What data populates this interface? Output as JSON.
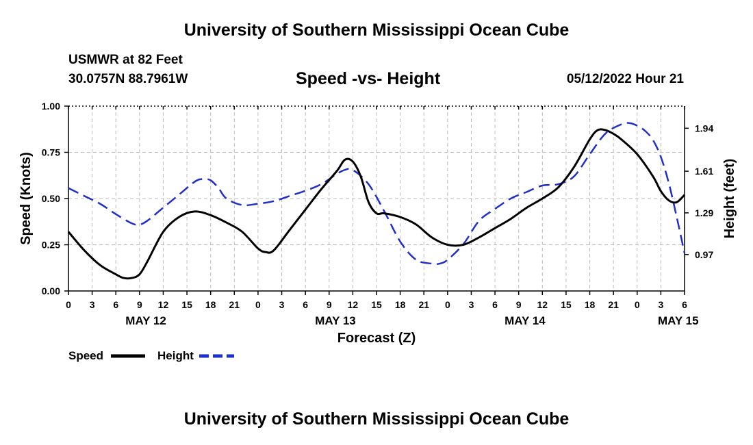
{
  "header": {
    "title": "University of Southern Mississippi Ocean Cube",
    "station": "USMWR at 82 Feet",
    "coords": "30.0757N  88.7961W",
    "subtitle": "Speed -vs- Height",
    "datetime": "05/12/2022 Hour 21"
  },
  "footer": {
    "title": "University of Southern Mississippi Ocean Cube"
  },
  "chart_data": {
    "type": "line",
    "title": "Speed -vs- Height",
    "xlabel": "Forecast (Z)",
    "ylabel": "Speed (Knots)",
    "y2label": "Height (feet)",
    "xlim": [
      0,
      78
    ],
    "ylim": [
      0,
      1
    ],
    "y2lim": [
      0.69,
      2.11
    ],
    "grid": true,
    "x_ticks": [
      0,
      3,
      6,
      9,
      12,
      15,
      18,
      21,
      24,
      27,
      30,
      33,
      36,
      39,
      42,
      45,
      48,
      51,
      54,
      57,
      60,
      63,
      66,
      69,
      72,
      75,
      78
    ],
    "x_tick_labels": [
      "0",
      "3",
      "6",
      "9",
      "12",
      "15",
      "18",
      "21",
      "0",
      "3",
      "6",
      "9",
      "12",
      "15",
      "18",
      "21",
      "0",
      "3",
      "6",
      "9",
      "12",
      "15",
      "18",
      "21",
      "0",
      "3",
      "6"
    ],
    "day_labels": [
      {
        "label": "MAY 12",
        "x": 9.8
      },
      {
        "label": "MAY 13",
        "x": 33.8
      },
      {
        "label": "MAY 14",
        "x": 57.8
      },
      {
        "label": "MAY 15",
        "x": 77.2
      }
    ],
    "y_ticks": [
      0,
      0.25,
      0.5,
      0.75,
      1
    ],
    "y_tick_labels": [
      "0.00",
      "0.25",
      "0.50",
      "0.75",
      "1.00"
    ],
    "y2_ticks": [
      0.97,
      1.29,
      1.61,
      1.94
    ],
    "y2_tick_labels": [
      "0.97",
      "1.29",
      "1.61",
      "1.94"
    ],
    "legend": {
      "position": "bottom-left",
      "entries": [
        {
          "label": "Speed",
          "color": "#000000",
          "style": "solid"
        },
        {
          "label": "Height",
          "color": "#1f2fcc",
          "style": "dashed"
        }
      ]
    },
    "series": [
      {
        "name": "Speed",
        "axis": "left",
        "color": "#000000",
        "dash": false,
        "x": [
          0,
          2,
          4,
          6,
          7,
          8,
          9,
          10,
          12,
          14,
          16,
          18,
          20,
          22,
          24,
          25,
          26,
          28,
          30,
          32,
          34,
          35,
          36,
          37,
          38,
          39,
          40,
          42,
          44,
          46,
          48,
          50,
          52,
          54,
          56,
          58,
          60,
          62,
          64,
          66,
          67,
          68,
          69,
          70,
          72,
          74,
          75,
          76,
          77,
          78
        ],
        "y": [
          0.32,
          0.22,
          0.14,
          0.09,
          0.07,
          0.07,
          0.09,
          0.16,
          0.32,
          0.4,
          0.43,
          0.41,
          0.37,
          0.32,
          0.23,
          0.21,
          0.22,
          0.33,
          0.44,
          0.55,
          0.65,
          0.71,
          0.7,
          0.62,
          0.48,
          0.42,
          0.42,
          0.4,
          0.36,
          0.29,
          0.25,
          0.25,
          0.29,
          0.34,
          0.39,
          0.45,
          0.5,
          0.56,
          0.67,
          0.82,
          0.87,
          0.87,
          0.85,
          0.82,
          0.74,
          0.62,
          0.54,
          0.49,
          0.48,
          0.52
        ]
      },
      {
        "name": "Height",
        "axis": "right",
        "color": "#1f2fcc",
        "dash": true,
        "x": [
          0,
          2,
          4,
          6,
          8,
          9,
          10,
          12,
          14,
          16,
          17,
          18,
          19,
          20,
          22,
          24,
          26,
          28,
          30,
          32,
          34,
          35,
          36,
          38,
          40,
          42,
          44,
          46,
          47,
          48,
          50,
          52,
          54,
          56,
          58,
          60,
          62,
          64,
          66,
          68,
          70,
          71,
          72,
          73,
          74,
          75,
          76,
          77,
          78
        ],
        "y": [
          1.48,
          1.42,
          1.36,
          1.28,
          1.21,
          1.2,
          1.23,
          1.33,
          1.43,
          1.53,
          1.55,
          1.54,
          1.48,
          1.4,
          1.35,
          1.36,
          1.38,
          1.42,
          1.46,
          1.51,
          1.59,
          1.62,
          1.62,
          1.51,
          1.3,
          1.07,
          0.93,
          0.9,
          0.9,
          0.93,
          1.05,
          1.23,
          1.32,
          1.4,
          1.45,
          1.5,
          1.51,
          1.57,
          1.74,
          1.9,
          1.97,
          1.98,
          1.96,
          1.92,
          1.85,
          1.72,
          1.52,
          1.26,
          0.98
        ]
      }
    ]
  }
}
